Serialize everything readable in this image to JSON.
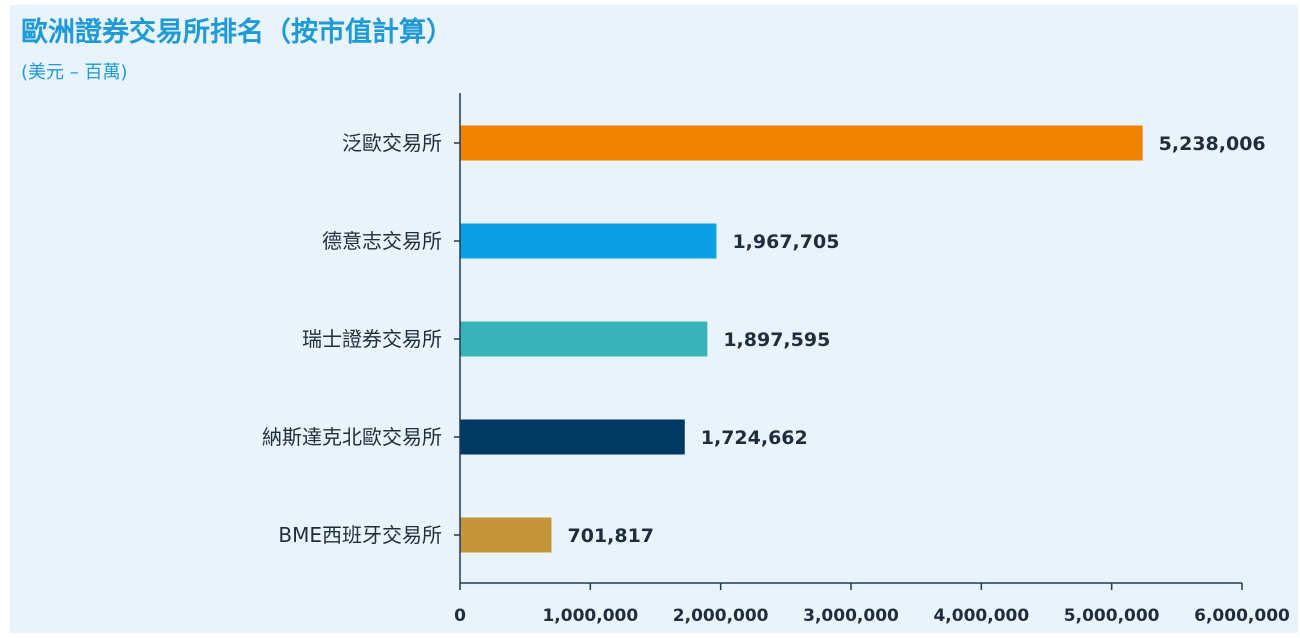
{
  "chart_data": {
    "type": "bar",
    "orientation": "horizontal",
    "title": "歐洲證券交易所排名（按市值計算）",
    "subtitle": "(美元 – 百萬)",
    "categories": [
      "泛歐交易所",
      "德意志交易所",
      "瑞士證券交易所",
      "納斯達克北歐交易所",
      "BME西班牙交易所"
    ],
    "values": [
      5238006,
      1967705,
      1897595,
      1724662,
      701817
    ],
    "value_labels": [
      "5,238,006",
      "1,967,705",
      "1,897,595",
      "1,724,662",
      "701,817"
    ],
    "colors": [
      "#ef8200",
      "#0aa0e3",
      "#38b4b8",
      "#003a62",
      "#c4953b"
    ],
    "xlim": [
      0,
      6000000
    ],
    "x_ticks": [
      0,
      1000000,
      2000000,
      3000000,
      4000000,
      5000000,
      6000000
    ],
    "x_tick_labels": [
      "0",
      "1,000,000",
      "2,000,000",
      "3,000,000",
      "4,000,000",
      "5,000,000",
      "6,000,000"
    ],
    "xlabel": "",
    "ylabel": "",
    "grid": false,
    "legend": "none"
  }
}
